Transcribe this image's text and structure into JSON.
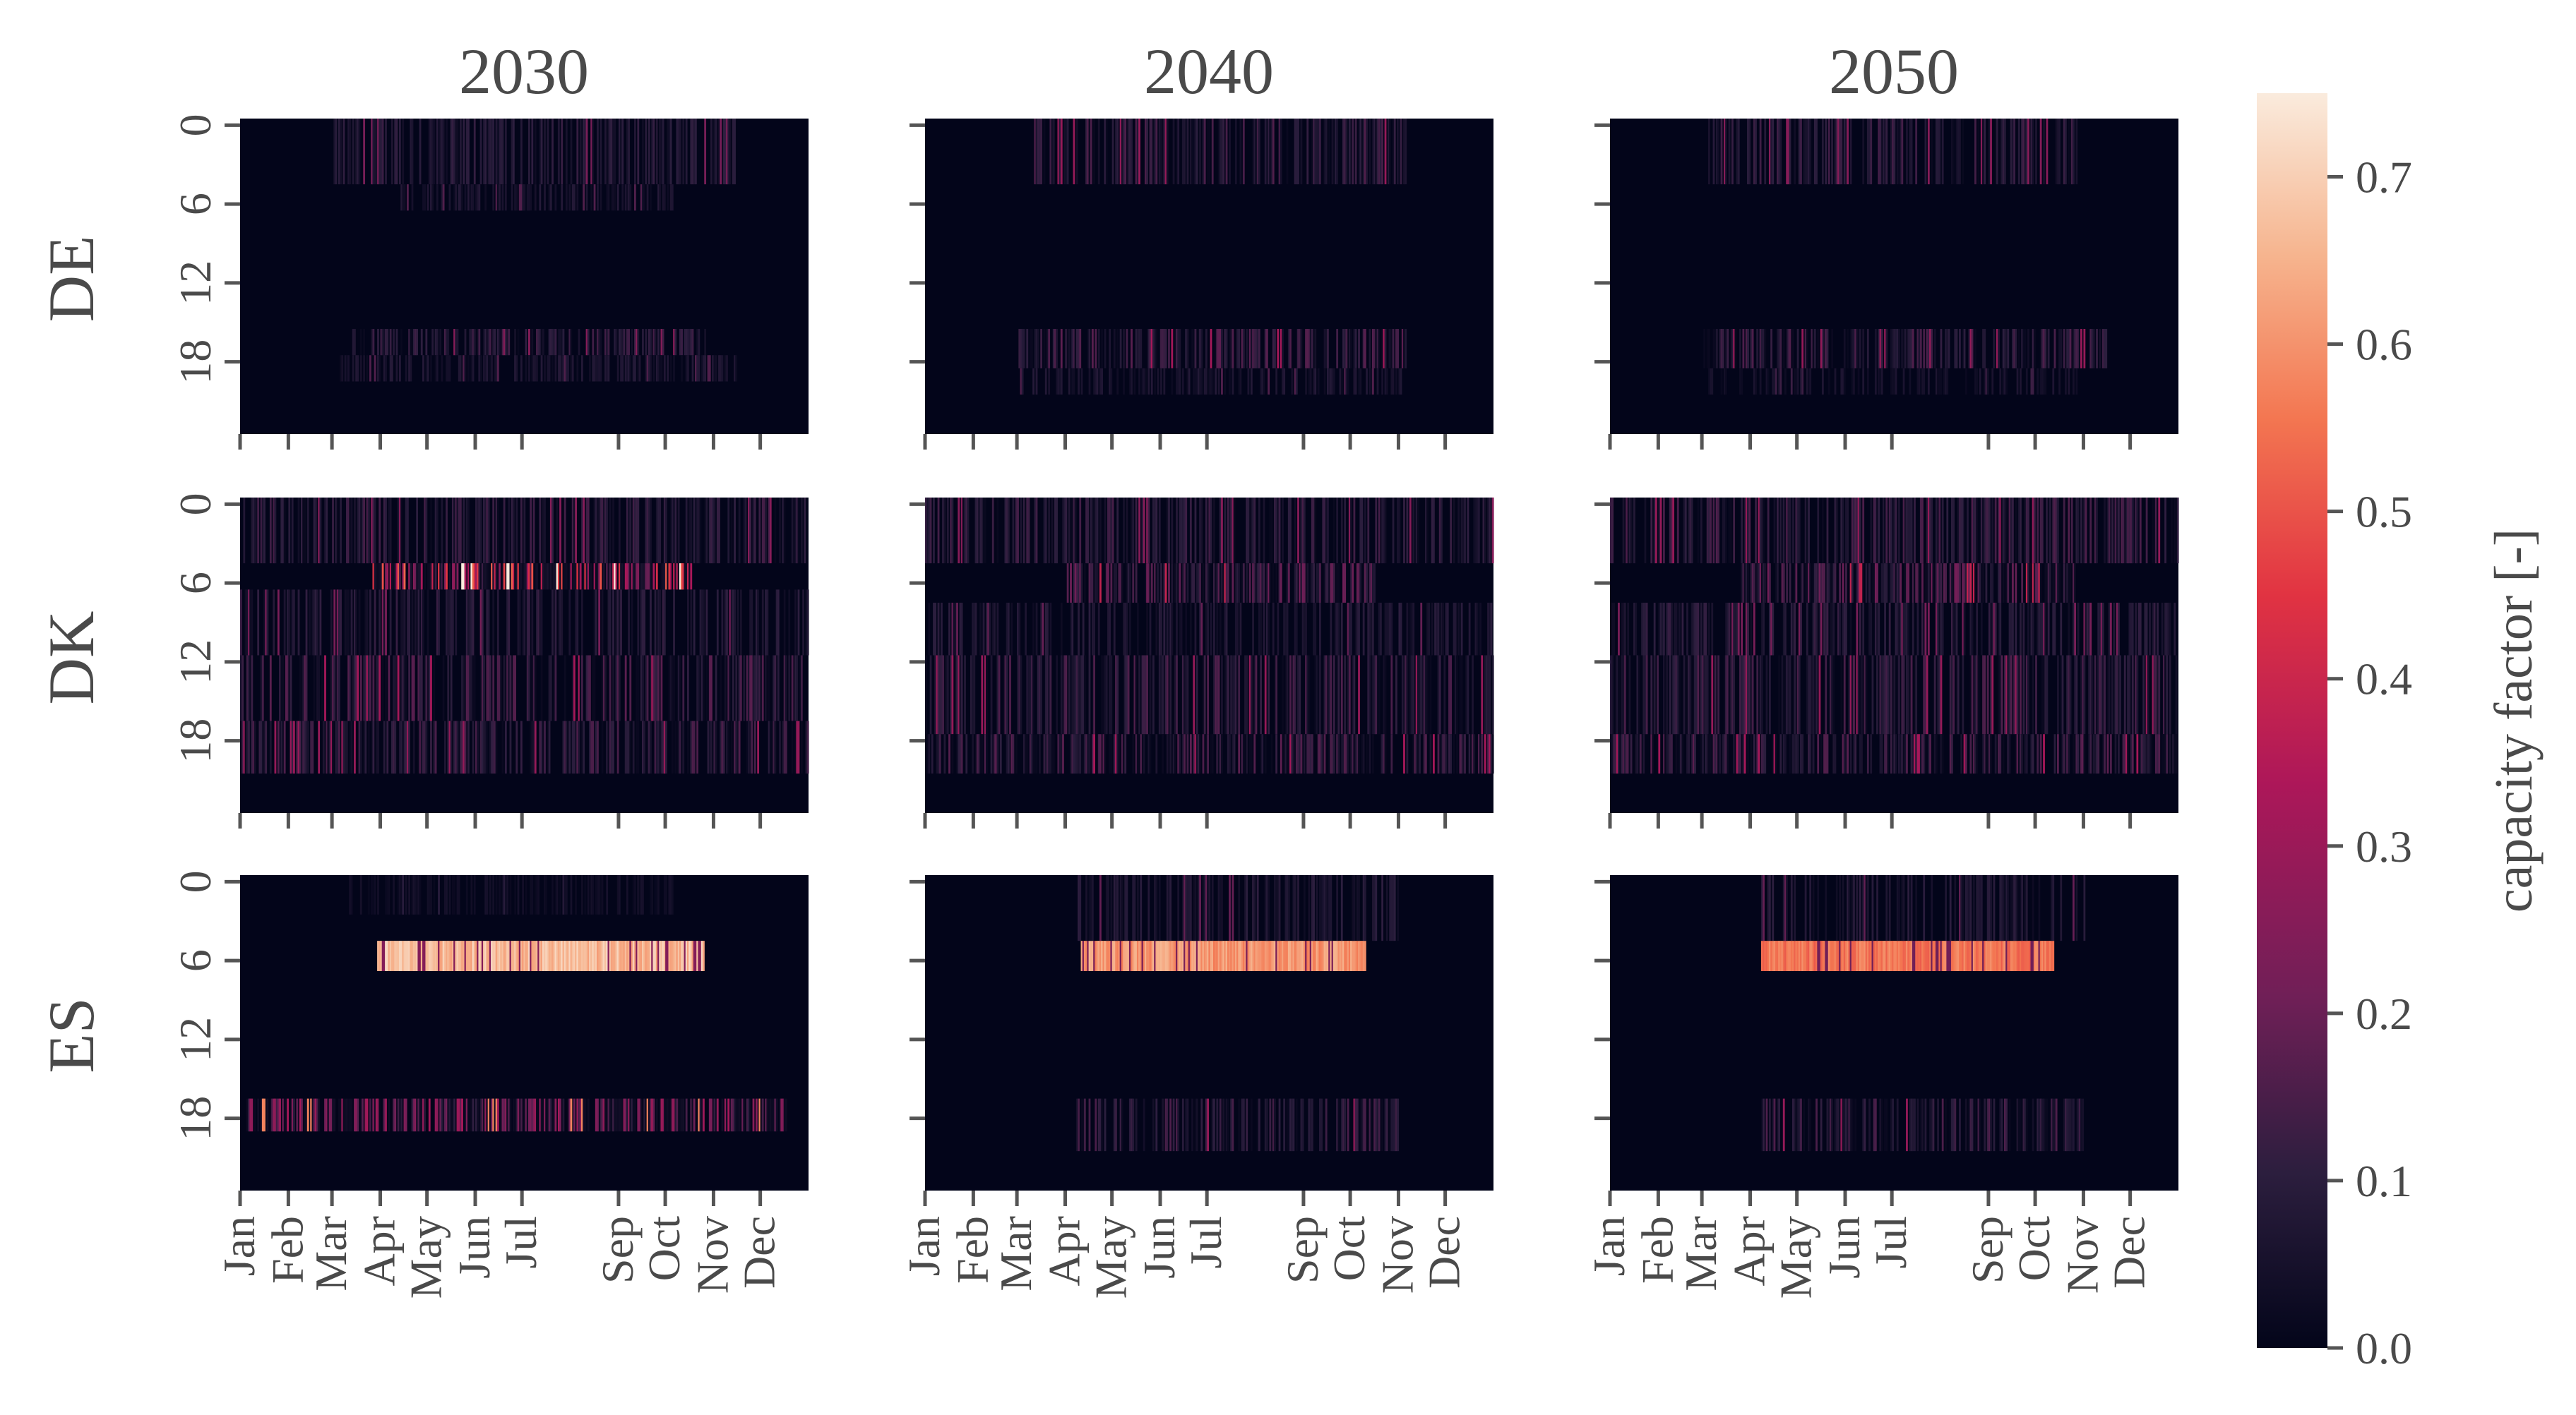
{
  "chart_data": {
    "type": "heatmap",
    "columns": [
      "2030",
      "2040",
      "2050"
    ],
    "rows": [
      "DE",
      "DK",
      "ES"
    ],
    "x_tick_labels": [
      "Jan",
      "Feb",
      "Mar",
      "Apr",
      "May",
      "Jun",
      "Jul",
      "Sep",
      "Oct",
      "Nov",
      "Dec"
    ],
    "y_tick_labels": [
      "0",
      "6",
      "12",
      "18"
    ],
    "x_range_days": [
      0,
      365
    ],
    "y_range_hours": [
      0,
      24
    ],
    "colorbar": {
      "label": "capacity factor [-]",
      "range": [
        0,
        0.75
      ],
      "ticks": [
        "0.0",
        "0.1",
        "0.2",
        "0.3",
        "0.4",
        "0.5",
        "0.6",
        "0.7"
      ],
      "colormap": "rocket"
    },
    "panels": [
      {
        "row": "DE",
        "year": "2030",
        "hour_bands": [
          {
            "hours": [
              0,
              5
            ],
            "days": [
              60,
              320
            ],
            "level": 0.07
          },
          {
            "hours": [
              5,
              7
            ],
            "days": [
              100,
              280
            ],
            "level": 0.05
          },
          {
            "hours": [
              16,
              18
            ],
            "days": [
              70,
              300
            ],
            "level": 0.08
          },
          {
            "hours": [
              18,
              20
            ],
            "days": [
              60,
              320
            ],
            "level": 0.05
          }
        ]
      },
      {
        "row": "DE",
        "year": "2040",
        "hour_bands": [
          {
            "hours": [
              0,
              5
            ],
            "days": [
              70,
              310
            ],
            "level": 0.09
          },
          {
            "hours": [
              16,
              19
            ],
            "days": [
              60,
              310
            ],
            "level": 0.1
          },
          {
            "hours": [
              19,
              21
            ],
            "days": [
              60,
              310
            ],
            "level": 0.05
          }
        ]
      },
      {
        "row": "DE",
        "year": "2050",
        "hour_bands": [
          {
            "hours": [
              0,
              5
            ],
            "days": [
              60,
              300
            ],
            "level": 0.08
          },
          {
            "hours": [
              16,
              19
            ],
            "days": [
              60,
              320
            ],
            "level": 0.09
          },
          {
            "hours": [
              19,
              21
            ],
            "days": [
              60,
              300
            ],
            "level": 0.04
          }
        ]
      },
      {
        "row": "DK",
        "year": "2030",
        "hour_bands": [
          {
            "hours": [
              0,
              5
            ],
            "days": [
              0,
              365
            ],
            "level": 0.08
          },
          {
            "hours": [
              5,
              7
            ],
            "days": [
              85,
              290
            ],
            "level": 0.3
          },
          {
            "hours": [
              7,
              12
            ],
            "days": [
              0,
              365
            ],
            "level": 0.07
          },
          {
            "hours": [
              12,
              17
            ],
            "days": [
              0,
              365
            ],
            "level": 0.1
          },
          {
            "hours": [
              17,
              21
            ],
            "days": [
              0,
              365
            ],
            "level": 0.09
          }
        ]
      },
      {
        "row": "DK",
        "year": "2040",
        "hour_bands": [
          {
            "hours": [
              0,
              5
            ],
            "days": [
              0,
              365
            ],
            "level": 0.08
          },
          {
            "hours": [
              5,
              8
            ],
            "days": [
              90,
              290
            ],
            "level": 0.12
          },
          {
            "hours": [
              8,
              12
            ],
            "days": [
              0,
              365
            ],
            "level": 0.06
          },
          {
            "hours": [
              12,
              18
            ],
            "days": [
              0,
              365
            ],
            "level": 0.09
          },
          {
            "hours": [
              18,
              21
            ],
            "days": [
              0,
              365
            ],
            "level": 0.1
          }
        ]
      },
      {
        "row": "DK",
        "year": "2050",
        "hour_bands": [
          {
            "hours": [
              0,
              5
            ],
            "days": [
              0,
              365
            ],
            "level": 0.09
          },
          {
            "hours": [
              5,
              8
            ],
            "days": [
              80,
              300
            ],
            "level": 0.12
          },
          {
            "hours": [
              8,
              12
            ],
            "days": [
              0,
              365
            ],
            "level": 0.07
          },
          {
            "hours": [
              12,
              18
            ],
            "days": [
              0,
              365
            ],
            "level": 0.09
          },
          {
            "hours": [
              18,
              21
            ],
            "days": [
              0,
              365
            ],
            "level": 0.1
          }
        ]
      },
      {
        "row": "ES",
        "year": "2030",
        "hour_bands": [
          {
            "hours": [
              5,
              7.3
            ],
            "days": [
              88,
              298
            ],
            "level": 0.72
          },
          {
            "hours": [
              17,
              19.5
            ],
            "days": [
              4,
              352
            ],
            "level": 0.18
          },
          {
            "hours": [
              0,
              3
            ],
            "days": [
              70,
              280
            ],
            "level": 0.03
          }
        ]
      },
      {
        "row": "ES",
        "year": "2040",
        "hour_bands": [
          {
            "hours": [
              5,
              7.3
            ],
            "days": [
              100,
              283
            ],
            "level": 0.66
          },
          {
            "hours": [
              17,
              21
            ],
            "days": [
              95,
              305
            ],
            "level": 0.09
          },
          {
            "hours": [
              0,
              5
            ],
            "days": [
              95,
              305
            ],
            "level": 0.06
          }
        ]
      },
      {
        "row": "ES",
        "year": "2050",
        "hour_bands": [
          {
            "hours": [
              5,
              7.3
            ],
            "days": [
              97,
              285
            ],
            "level": 0.6
          },
          {
            "hours": [
              17,
              21
            ],
            "days": [
              97,
              305
            ],
            "level": 0.09
          },
          {
            "hours": [
              0,
              5
            ],
            "days": [
              97,
              305
            ],
            "level": 0.06
          }
        ]
      }
    ]
  }
}
